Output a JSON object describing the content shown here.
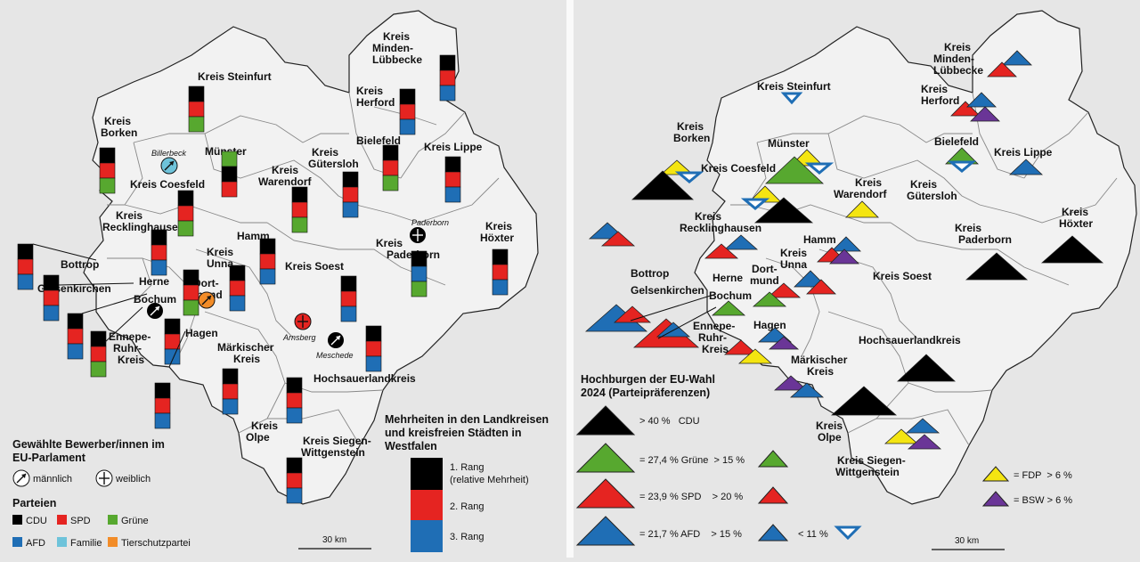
{
  "left_map": {
    "regions": [
      {
        "label": "Kreis Steinfurt"
      },
      {
        "label": "Kreis Borken"
      },
      {
        "label": "Kreis Minden-Lübbecke"
      },
      {
        "label": "Kreis Herford"
      },
      {
        "label": "Bielefeld"
      },
      {
        "label": "Kreis Lippe"
      },
      {
        "label": "Münster"
      },
      {
        "label": "Kreis Gütersloh"
      },
      {
        "label": "Kreis Warendorf"
      },
      {
        "label": "Kreis Coesfeld"
      },
      {
        "label": "Kreis Recklinghausen"
      },
      {
        "label": "Kreis Unna"
      },
      {
        "label": "Hamm"
      },
      {
        "label": "Kreis Paderborn"
      },
      {
        "label": "Kreis Höxter"
      },
      {
        "label": "Kreis Soest"
      },
      {
        "label": "Bottrop"
      },
      {
        "label": "Gelsenkirchen"
      },
      {
        "label": "Herne"
      },
      {
        "label": "Bochum"
      },
      {
        "label": "Dortmund"
      },
      {
        "label": "Ennepe-Ruhr-Kreis"
      },
      {
        "label": "Hagen"
      },
      {
        "label": "Märkischer Kreis"
      },
      {
        "label": "Hochsauerlandkreis"
      },
      {
        "label": "Kreis Olpe"
      },
      {
        "label": "Kreis Siegen-Wittgenstein"
      }
    ],
    "places": [
      {
        "name": "Billerbeck"
      },
      {
        "name": "Paderborn"
      },
      {
        "name": "Arnsberg"
      },
      {
        "name": "Meschede"
      }
    ],
    "legend": {
      "title_line1": "Gewählte Bewerber/innen im",
      "title_line2": "EU-Parlament",
      "male_label": "männlich",
      "female_label": "weiblich",
      "parties_title": "Parteien",
      "parties": [
        {
          "name": "CDU",
          "color": "#000000"
        },
        {
          "name": "SPD",
          "color": "#e52421"
        },
        {
          "name": "Grüne",
          "color": "#57a82f"
        },
        {
          "name": "AFD",
          "color": "#1f6eb5"
        },
        {
          "name": "Familie",
          "color": "#6ec3da"
        },
        {
          "name": "Tierschutzpartei",
          "color": "#f28c28"
        }
      ],
      "majority_title_line1": "Mehrheiten in den Landkreisen",
      "majority_title_line2": "und kreisfreien Städten in",
      "majority_title_line3": "Westfalen",
      "rank1_line1": "1. Rang",
      "rank1_line2": "(relative Mehrheit)",
      "rank2": "2. Rang",
      "rank3": "3. Rang",
      "scale": "30 km"
    }
  },
  "right_map": {
    "regions": [
      {
        "label": "Kreis Steinfurt"
      },
      {
        "label": "Kreis Minden-Lübbecke"
      },
      {
        "label": "Kreis Herford"
      },
      {
        "label": "Kreis Borken"
      },
      {
        "label": "Münster"
      },
      {
        "label": "Bielefeld"
      },
      {
        "label": "Kreis Lippe"
      },
      {
        "label": "Kreis Coesfeld"
      },
      {
        "label": "Kreis Warendorf"
      },
      {
        "label": "Kreis Gütersloh"
      },
      {
        "label": "Kreis Recklinghausen"
      },
      {
        "label": "Kreis Höxter"
      },
      {
        "label": "Hamm"
      },
      {
        "label": "Kreis Paderborn"
      },
      {
        "label": "Kreis Unna"
      },
      {
        "label": "Dortmund"
      },
      {
        "label": "Bottrop"
      },
      {
        "label": "Herne"
      },
      {
        "label": "Kreis Soest"
      },
      {
        "label": "Gelsenkirchen"
      },
      {
        "label": "Bochum"
      },
      {
        "label": "Ennepe-Ruhr-Kreis"
      },
      {
        "label": "Hagen"
      },
      {
        "label": "Hochsauerlandkreis"
      },
      {
        "label": "Märkischer Kreis"
      },
      {
        "label": "Kreis Olpe"
      },
      {
        "label": "Kreis Siegen-Wittgenstein"
      }
    ],
    "legend": {
      "title_line1": "Hochburgen der EU-Wahl",
      "title_line2": "2024 (Parteipräferenzen)",
      "cdu": "> 40 %   CDU",
      "gruene": "= 27,4 % Grüne  > 15 %",
      "spd": "= 23,9 % SPD    > 20 %",
      "afd": "= 21,7 % AFD    > 15 %",
      "afd_low": "< 11 %",
      "fdp": "= FDP  > 6 %",
      "bsw": "= BSW > 6 %",
      "scale": "30 km"
    }
  }
}
